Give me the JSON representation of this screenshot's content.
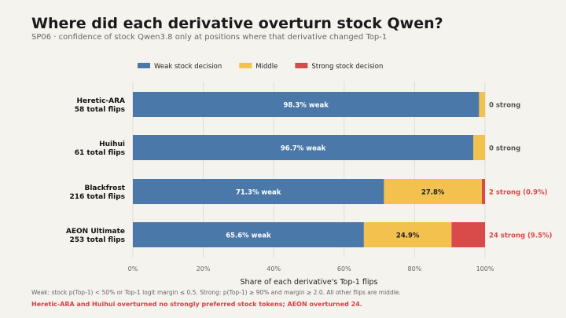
{
  "title": "Where did each derivative overturn stock Qwen?",
  "subtitle": "SP06 · confidence of stock Qwen3.8 only at positions where that derivative changed Top-1",
  "footnote": "Weak: stock p(Top-1) < 50% or Top-1 logit margin ≤ 0.5.  Strong: p(Top-1) ≥ 90% and margin ≥ 2.0.  All other flips are middle.",
  "callout": "Heretic-ARA and Huihui overturned no strongly preferred stock tokens; AEON overturned 24.",
  "colors": {
    "weak": "#4a78a8",
    "middle": "#f2c14e",
    "strong": "#d94a4a",
    "grid": "#dddddd"
  },
  "chart_data": {
    "type": "bar",
    "orientation": "horizontal",
    "stacked": true,
    "xlabel": "Share of each derivative's Top-1 flips",
    "xlim": [
      0,
      100
    ],
    "xticks": [
      "0%",
      "20%",
      "40%",
      "60%",
      "80%",
      "100%"
    ],
    "legend_position": "top",
    "grid": true,
    "categories": [
      {
        "name": "Heretic-ARA",
        "flips_label": "58 total flips"
      },
      {
        "name": "Huihui",
        "flips_label": "61 total flips"
      },
      {
        "name": "Blackfrost",
        "flips_label": "216 total flips"
      },
      {
        "name": "AEON Ultimate",
        "flips_label": "253 total flips"
      }
    ],
    "series": [
      {
        "name": "Weak stock decision",
        "key": "weak",
        "values": [
          98.3,
          96.7,
          71.3,
          65.6
        ],
        "labels": [
          "98.3% weak",
          "96.7% weak",
          "71.3% weak",
          "65.6% weak"
        ]
      },
      {
        "name": "Middle",
        "key": "middle",
        "values": [
          1.7,
          3.3,
          27.8,
          24.9
        ],
        "labels": [
          "",
          "",
          "27.8%",
          "24.9%"
        ]
      },
      {
        "name": "Strong stock decision",
        "key": "strong",
        "values": [
          0,
          0,
          0.9,
          9.5
        ],
        "labels": [
          "",
          "",
          "",
          ""
        ]
      }
    ],
    "annotations": [
      "0 strong",
      "0 strong",
      "2 strong (0.9%)",
      "24 strong (9.5%)"
    ]
  }
}
